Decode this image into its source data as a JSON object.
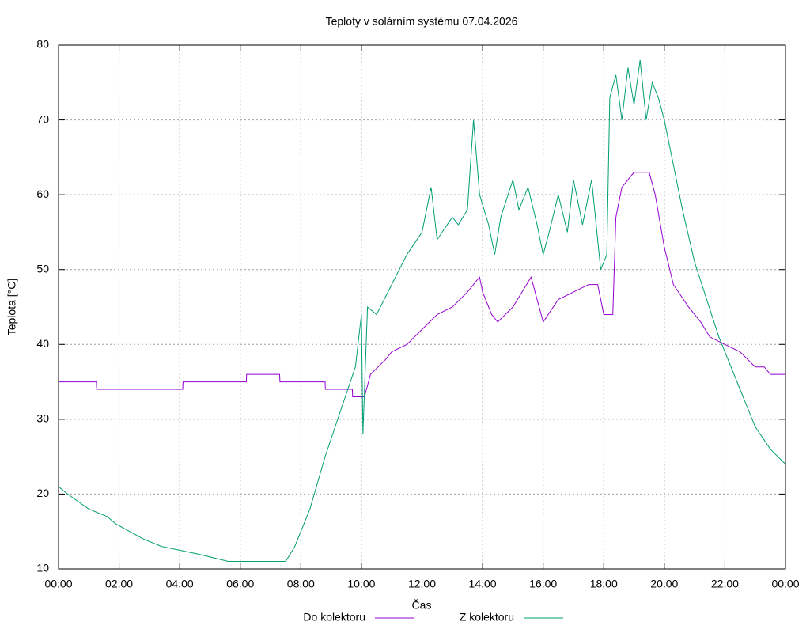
{
  "chart_data": {
    "type": "line",
    "title": "Teploty v solárním systému 07.04.2026",
    "x_label": "Čas",
    "y_label": "Teplota [°C]",
    "xlim": [
      0,
      24
    ],
    "ylim": [
      10,
      80
    ],
    "xticks": [
      {
        "value": 0,
        "label": "00:00"
      },
      {
        "value": 2,
        "label": "02:00"
      },
      {
        "value": 4,
        "label": "04:00"
      },
      {
        "value": 6,
        "label": "06:00"
      },
      {
        "value": 8,
        "label": "08:00"
      },
      {
        "value": 10,
        "label": "10:00"
      },
      {
        "value": 12,
        "label": "12:00"
      },
      {
        "value": 14,
        "label": "14:00"
      },
      {
        "value": 16,
        "label": "16:00"
      },
      {
        "value": 18,
        "label": "18:00"
      },
      {
        "value": 20,
        "label": "20:00"
      },
      {
        "value": 22,
        "label": "22:00"
      },
      {
        "value": 24,
        "label": "00:00"
      }
    ],
    "yticks": [
      10,
      20,
      30,
      40,
      50,
      60,
      70,
      80
    ],
    "grid": true,
    "legend": "bottom",
    "series": [
      {
        "name": "Do kolektoru",
        "color": "#9400d3",
        "x": [
          0,
          1.25,
          1.26,
          4.1,
          4.11,
          6.2,
          6.21,
          7.3,
          7.31,
          8.8,
          8.81,
          9.7,
          9.71,
          10.1,
          10.3,
          10.8,
          11,
          11.5,
          12,
          12.5,
          13,
          13.5,
          13.9,
          14,
          14.3,
          14.5,
          15,
          15.3,
          15.6,
          15.8,
          16,
          16.5,
          17,
          17.5,
          17.8,
          18,
          18.3,
          18.4,
          18.6,
          19,
          19.5,
          19.7,
          20,
          20.3,
          20.8,
          21.2,
          21.5,
          22,
          22.5,
          23,
          23.3,
          23.5,
          24
        ],
        "values": [
          35,
          35,
          34,
          34,
          35,
          35,
          36,
          36,
          35,
          35,
          34,
          34,
          33,
          33,
          36,
          38,
          39,
          40,
          42,
          44,
          45,
          47,
          49,
          47,
          44,
          43,
          45,
          47,
          49,
          46,
          43,
          46,
          47,
          48,
          48,
          44,
          44,
          57,
          61,
          63,
          63,
          60,
          53,
          48,
          45,
          43,
          41,
          40,
          39,
          37,
          37,
          36,
          36
        ]
      },
      {
        "name": "Z kolektoru",
        "color": "#009e73",
        "x": [
          0,
          0.3,
          1,
          1.6,
          1.9,
          2.8,
          3.4,
          4.6,
          5.6,
          7.5,
          7.8,
          8.3,
          8.8,
          9.3,
          9.8,
          10,
          10.05,
          10.2,
          10.5,
          11,
          11.5,
          12,
          12.3,
          12.5,
          13,
          13.2,
          13.5,
          13.7,
          13.9,
          14.2,
          14.4,
          14.6,
          15,
          15.2,
          15.5,
          15.8,
          16,
          16.2,
          16.5,
          16.8,
          17,
          17.3,
          17.6,
          17.9,
          18.1,
          18.2,
          18.4,
          18.6,
          18.8,
          19,
          19.2,
          19.4,
          19.6,
          19.8,
          20,
          20.3,
          20.6,
          21,
          21.4,
          21.8,
          22.2,
          22.6,
          23,
          23.5,
          24
        ],
        "values": [
          21,
          20,
          18,
          17,
          16,
          14,
          13,
          12,
          11,
          11,
          13,
          18,
          25,
          31,
          37,
          44,
          28,
          45,
          44,
          48,
          52,
          55,
          61,
          54,
          57,
          56,
          58,
          70,
          60,
          56,
          52,
          57,
          62,
          58,
          61,
          56,
          52,
          55,
          60,
          55,
          62,
          56,
          62,
          50,
          52,
          73,
          76,
          70,
          77,
          72,
          78,
          70,
          75,
          73,
          70,
          64,
          58,
          51,
          46,
          41,
          37,
          33,
          29,
          26,
          24
        ]
      }
    ]
  }
}
